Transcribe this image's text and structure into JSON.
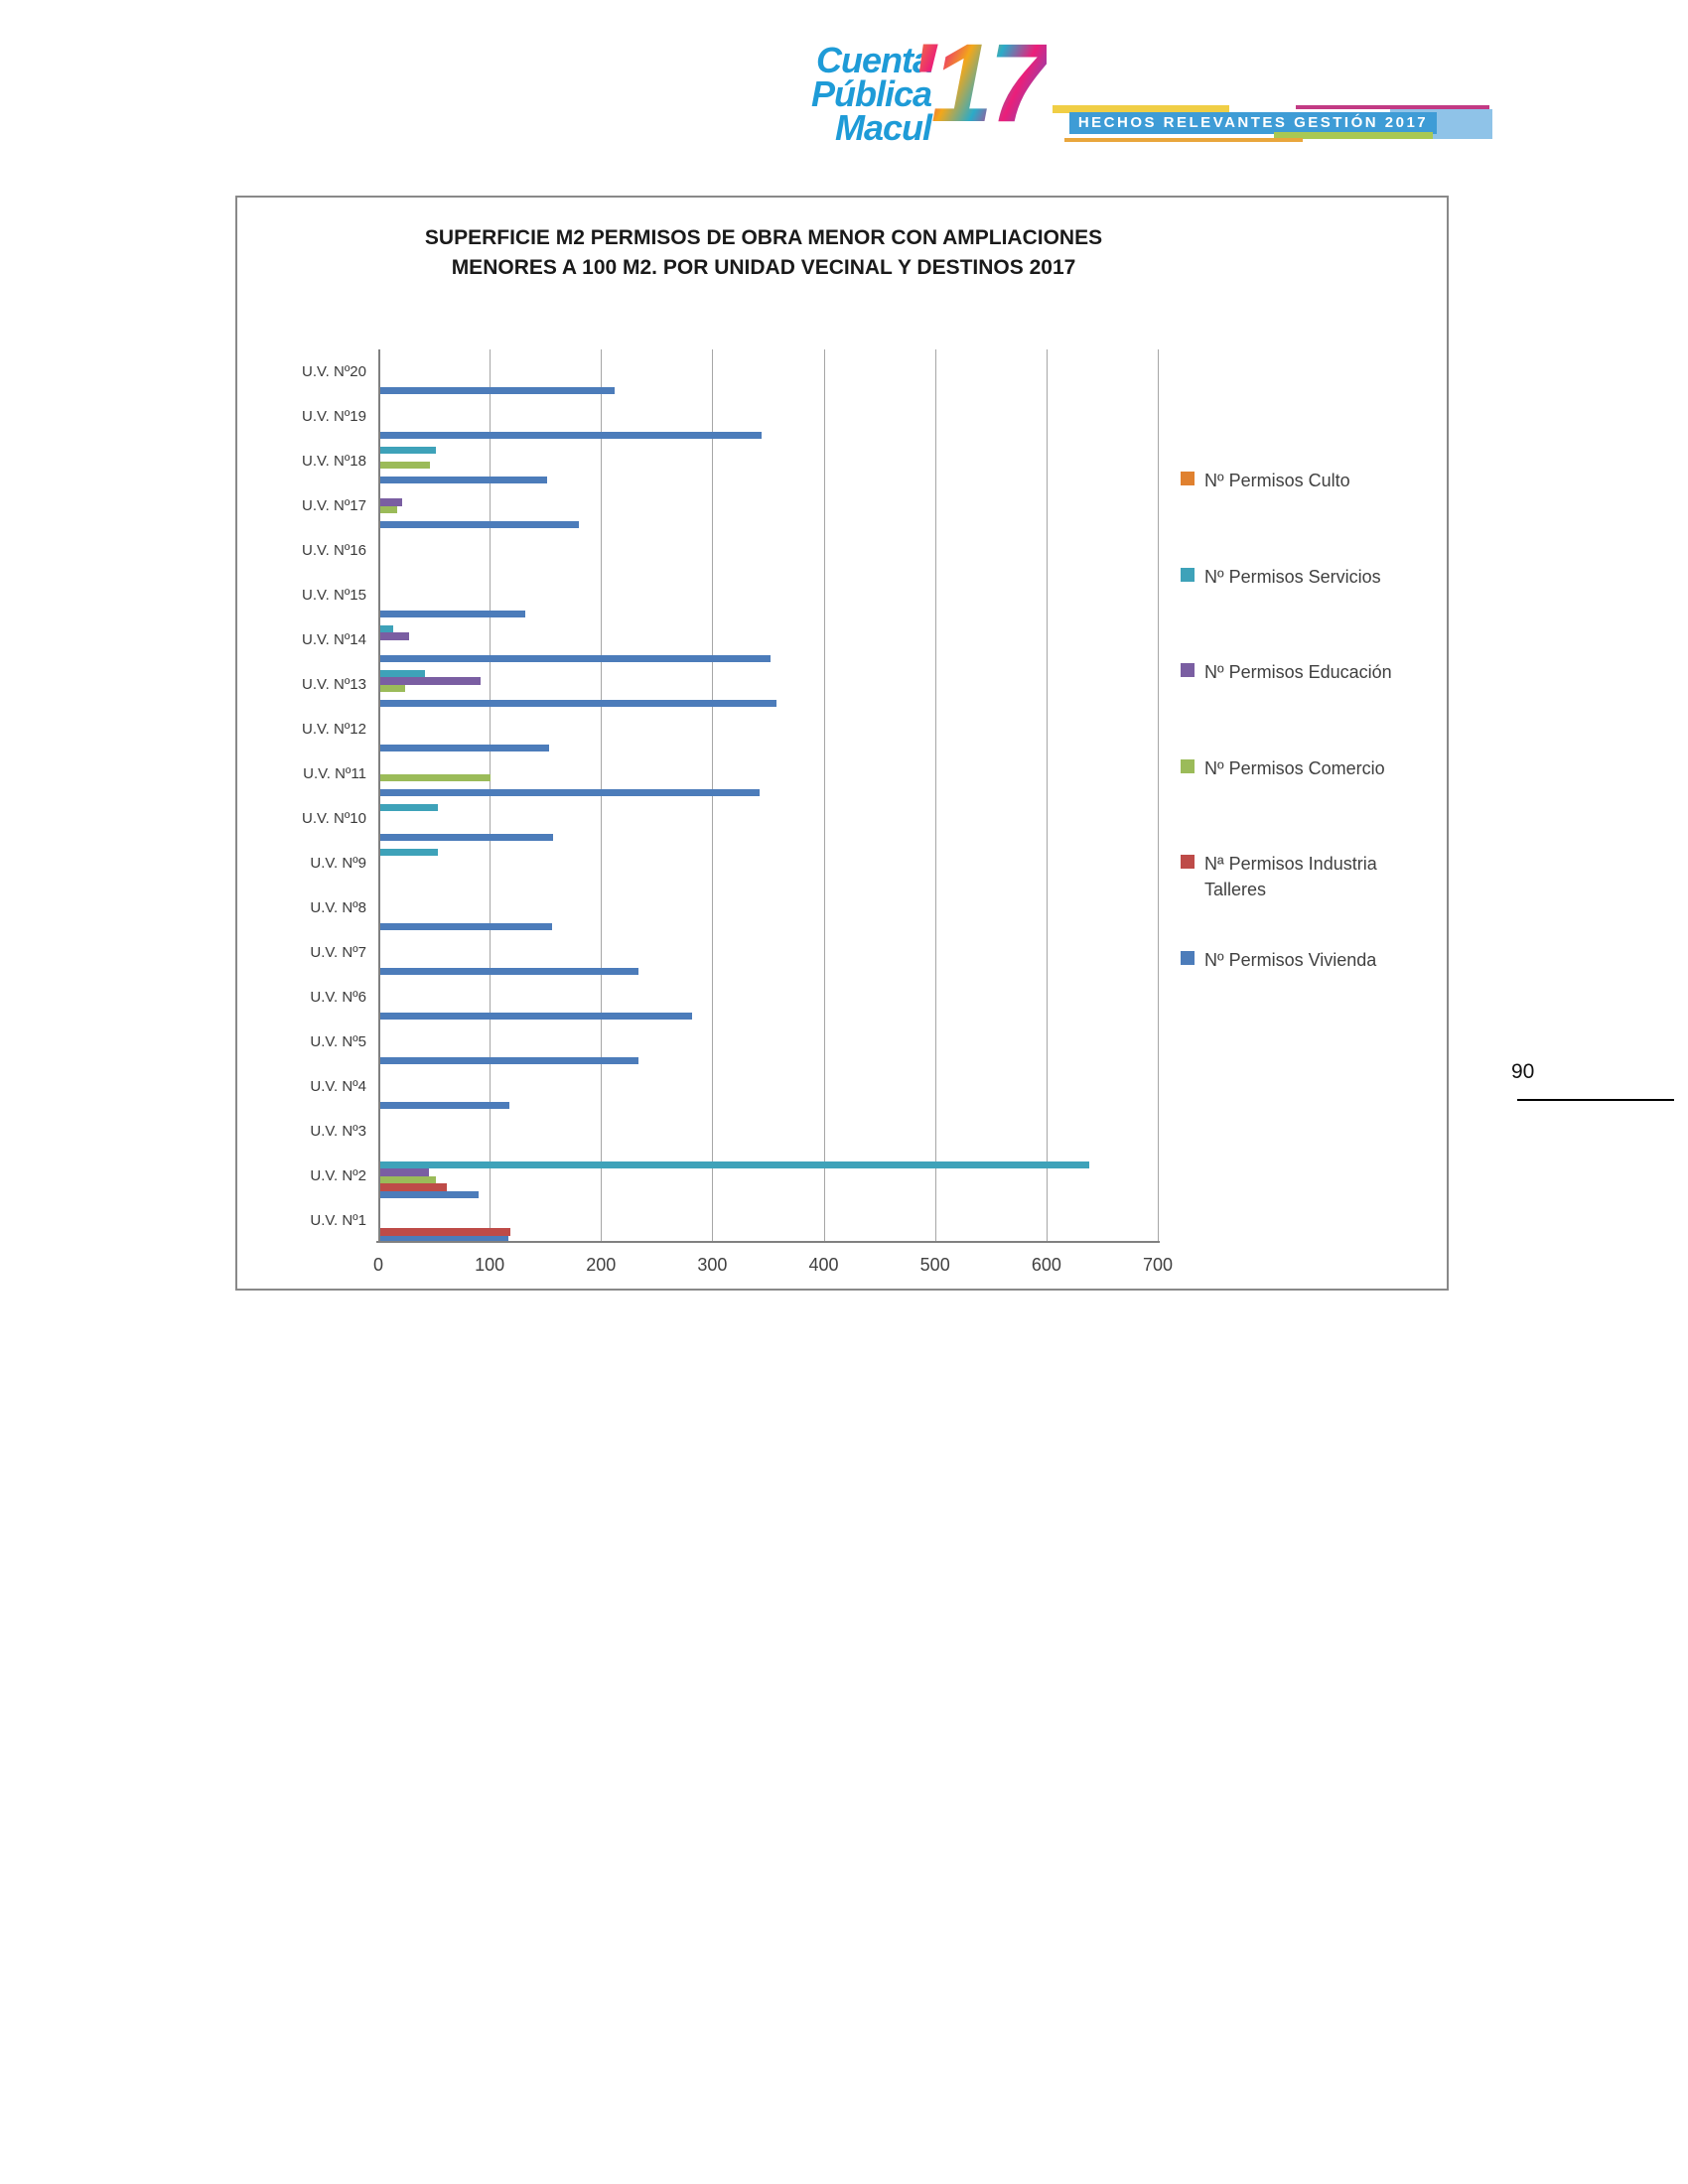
{
  "header": {
    "logo": {
      "line1": "Cuenta",
      "line2": "Pública",
      "line3": "Macul",
      "year": "'17"
    },
    "banner": {
      "text": "HECHOS RELEVANTES GESTIÓN 2017"
    }
  },
  "page_number": "90",
  "chart_data": {
    "type": "bar",
    "orientation": "horizontal",
    "title_line1": "SUPERFICIE M2 PERMISOS DE OBRA MENOR CON AMPLIACIONES",
    "title_line2": "MENORES A 100 M2. POR UNIDAD VECINAL Y DESTINOS 2017",
    "categories": [
      "U.V. Nº20",
      "U.V. Nº19",
      "U.V. Nº18",
      "U.V. Nº17",
      "U.V. Nº16",
      "U.V. Nº15",
      "U.V. Nº14",
      "U.V. Nº13",
      "U.V. Nº12",
      "U.V. Nº11",
      "U.V. Nº10",
      "U.V. Nº9",
      "U.V. Nº8",
      "U.V. Nº7",
      "U.V. Nº6",
      "U.V. Nº5",
      "U.V. Nº4",
      "U.V. Nº3",
      "U.V. Nº2",
      "U.V. Nº1"
    ],
    "series": [
      {
        "name": "Nº Permisos Culto",
        "color": "#E0812F",
        "values": [
          0,
          0,
          0,
          0,
          0,
          0,
          0,
          0,
          0,
          0,
          0,
          0,
          0,
          0,
          0,
          0,
          0,
          0,
          0,
          0
        ]
      },
      {
        "name": "Nº Permisos Servicios",
        "color": "#3EA2B9",
        "values": [
          0,
          0,
          50,
          0,
          0,
          0,
          12,
          40,
          0,
          0,
          52,
          52,
          0,
          0,
          0,
          0,
          0,
          0,
          637,
          0
        ]
      },
      {
        "name": "Nº Permisos Educación",
        "color": "#7A5EA2",
        "values": [
          0,
          0,
          0,
          20,
          0,
          0,
          26,
          90,
          0,
          0,
          0,
          0,
          0,
          0,
          0,
          0,
          0,
          0,
          44,
          0
        ]
      },
      {
        "name": "Nº Permisos Comercio",
        "color": "#9BBB59",
        "values": [
          0,
          0,
          45,
          15,
          0,
          0,
          0,
          22,
          0,
          99,
          0,
          0,
          0,
          0,
          0,
          0,
          0,
          0,
          50,
          0
        ]
      },
      {
        "name": "Nª Permisos Industria Talleres",
        "color": "#BE4B48",
        "values": [
          0,
          0,
          0,
          0,
          0,
          0,
          0,
          0,
          0,
          0,
          0,
          0,
          0,
          0,
          0,
          0,
          0,
          0,
          60,
          117
        ]
      },
      {
        "name": "Nº Permisos Vivienda",
        "color": "#4C7CBA",
        "values": [
          210,
          342,
          150,
          178,
          0,
          130,
          350,
          356,
          152,
          341,
          155,
          0,
          154,
          232,
          280,
          232,
          116,
          0,
          88,
          115
        ]
      }
    ],
    "x_ticks": [
      0,
      100,
      200,
      300,
      400,
      500,
      600,
      700
    ],
    "xlim": [
      0,
      700
    ],
    "grid": true,
    "legend_position": "right"
  }
}
